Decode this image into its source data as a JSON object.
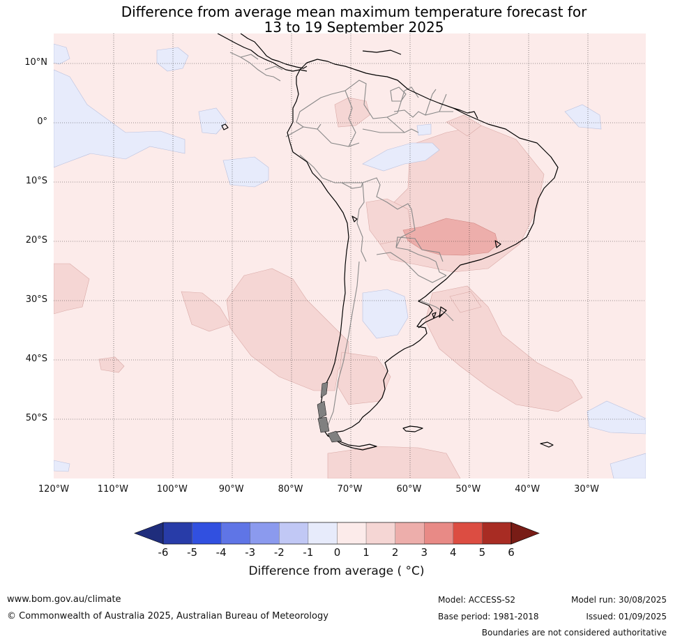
{
  "title": {
    "line1": "Difference from average mean maximum temperature forecast for",
    "line2": "13 to 19 September 2025"
  },
  "map": {
    "lat_labels": [
      {
        "label": "10°N",
        "lat": 10
      },
      {
        "label": "0°",
        "lat": 0
      },
      {
        "label": "10°S",
        "lat": -10
      },
      {
        "label": "20°S",
        "lat": -20
      },
      {
        "label": "30°S",
        "lat": -30
      },
      {
        "label": "40°S",
        "lat": -40
      },
      {
        "label": "50°S",
        "lat": -50
      }
    ],
    "lon_labels": [
      {
        "label": "120°W",
        "lon": -120
      },
      {
        "label": "110°W",
        "lon": -110
      },
      {
        "label": "100°W",
        "lon": -100
      },
      {
        "label": "90°W",
        "lon": -90
      },
      {
        "label": "80°W",
        "lon": -80
      },
      {
        "label": "70°W",
        "lon": -70
      },
      {
        "label": "60°W",
        "lon": -60
      },
      {
        "label": "50°W",
        "lon": -50
      },
      {
        "label": "40°W",
        "lon": -40
      },
      {
        "label": "30°W",
        "lon": -30
      }
    ],
    "lon_range": [
      -120,
      -20
    ],
    "lat_range": [
      -60,
      15
    ],
    "gridlines": true,
    "colors": {
      "ocean_base": "#fcebea",
      "pos1_2": "#f5d6d4",
      "pos2_3": "#edaeab",
      "neg1_0": "#e7ebfb"
    }
  },
  "colorbar": {
    "ticks": [
      "-6",
      "-5",
      "-4",
      "-3",
      "-2",
      "-1",
      "0",
      "1",
      "2",
      "3",
      "4",
      "5",
      "6"
    ],
    "colors": [
      "#283ca8",
      "#3150e0",
      "#5f75e6",
      "#8b9aee",
      "#c1c8f5",
      "#e7ebfb",
      "#fcebea",
      "#f5d6d4",
      "#edaeab",
      "#e88a86",
      "#dc4d42",
      "#a82c23"
    ],
    "under_color": "#1f2d7c",
    "over_color": "#781c16",
    "label": "Difference from average ( °C)"
  },
  "footer": {
    "website": "www.bom.gov.au/climate",
    "copyright": "© Commonwealth of Australia 2025, Australian Bureau of Meteorology",
    "model": "Model: ACCESS-S2",
    "base_period": "Base period: 1981-2018",
    "model_run": "Model run: 30/08/2025",
    "issued": "Issued: 01/09/2025",
    "disclaimer": "Boundaries are not considered authoritative"
  }
}
